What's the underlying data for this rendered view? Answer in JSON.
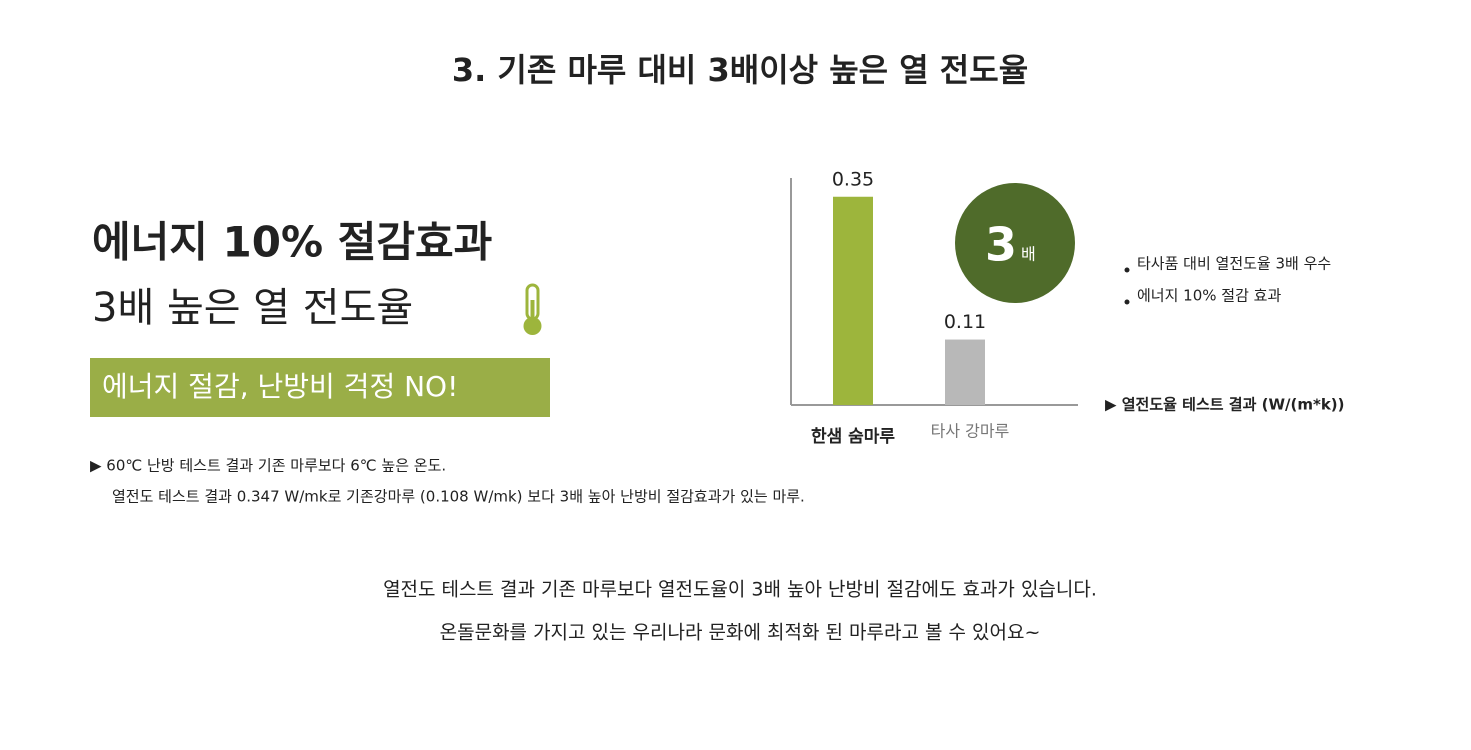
{
  "heading": "3. 기존 마루 대비 3배이상 높은 열 전도율",
  "left": {
    "headline": "에너지 10% 절감효과",
    "subhead": "3배 높은 열 전도율",
    "banner": "에너지 절감, 난방비 걱정 NO!",
    "notes": [
      "▶ 60℃ 난방 테스트 결과 기존 마루보다 6℃ 높은 온도.",
      "열전도 테스트 결과 0.347 W/mk로 기존강마루 (0.108 W/mk) 보다 3배 높아 난방비 절감효과가 있는 마루."
    ]
  },
  "chart_data": {
    "type": "bar",
    "categories": [
      "한샘 숨마루",
      "타사 강마루"
    ],
    "values": [
      0.35,
      0.11
    ],
    "colors": [
      "#9db53c",
      "#b8b8b8"
    ],
    "caption": "▶ 열전도율 테스트 결과 (W/(m*k))"
  },
  "badge": {
    "number": "3",
    "unit": "배"
  },
  "bullets": [
    "타사품 대비 열전도율 3배 우수",
    "에너지 10% 절감 효과"
  ],
  "footer": [
    "열전도 테스트 결과 기존 마루보다 열전도율이 3배 높아 난방비 절감에도 효과가 있습니다.",
    "온돌문화를 가지고 있는 우리나라 문화에 최적화 된 마루라고 볼 수 있어요~"
  ]
}
